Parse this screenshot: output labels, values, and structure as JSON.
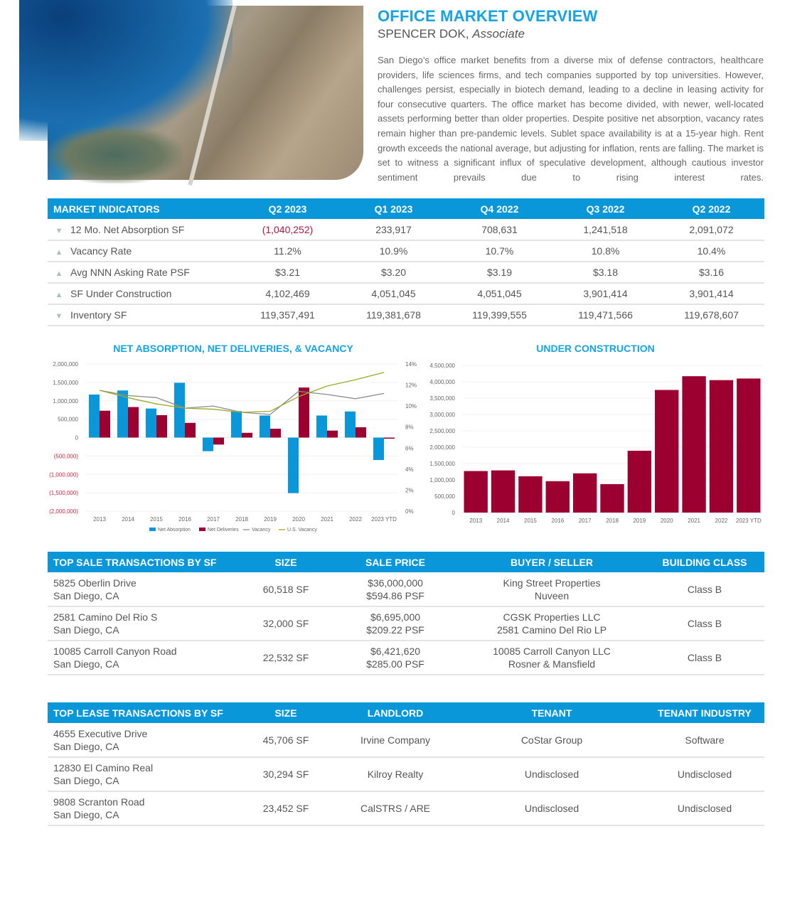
{
  "header": {
    "title": "OFFICE MARKET OVERVIEW",
    "author": "SPENCER DOK,",
    "author_role": "Associate",
    "intro": "San Diego’s office market benefits from a diverse mix of defense contractors, healthcare providers, life sciences firms, and tech companies supported by top universities. However, challenges persist, especially in biotech demand, leading to a decline in leasing activity for four consecutive quarters. The office market has become divided, with newer, well-located assets performing better than older properties. Despite positive net absorption, vacancy rates remain higher than pre-pandemic levels. Sublet space availability is at a 15-year high. Rent growth exceeds the national average, but adjusting for inflation, rents are falling. The market is set to witness a significant influx of speculative development, although cautious investor sentiment prevails due to rising interest rates."
  },
  "market_indicators": {
    "headers": [
      "MARKET INDICATORS",
      "Q2 2023",
      "Q1 2023",
      "Q4 2022",
      "Q3 2022",
      "Q2 2022"
    ],
    "rows": [
      {
        "trend": "down",
        "arrow": "▼",
        "label": "12 Mo. Net Absorption SF",
        "values": [
          "(1,040,252)",
          "233,917",
          "708,631",
          "1,241,518",
          "2,091,072"
        ]
      },
      {
        "trend": "up",
        "arrow": "▲",
        "label": "Vacancy Rate",
        "values": [
          "11.2%",
          "10.9%",
          "10.7%",
          "10.8%",
          "10.4%"
        ]
      },
      {
        "trend": "up",
        "arrow": "▲",
        "label": "Avg NNN Asking Rate PSF",
        "values": [
          "$3.21",
          "$3.20",
          "$3.19",
          "$3.18",
          "$3.16"
        ]
      },
      {
        "trend": "up",
        "arrow": "▲",
        "label": "SF Under Construction",
        "values": [
          "4,102,469",
          "4,051,045",
          "4,051,045",
          "3,901,414",
          "3,901,414"
        ]
      },
      {
        "trend": "down",
        "arrow": "▼",
        "label": "Inventory SF",
        "values": [
          "119,357,491",
          "119,381,678",
          "119,399,555",
          "119,471,566",
          "119,678,607"
        ]
      }
    ]
  },
  "chart_data": [
    {
      "type": "bar",
      "title": "NET ABSORPTION, NET DELIVERIES, & VACANCY",
      "categories": [
        "2013",
        "2014",
        "2015",
        "2016",
        "2017",
        "2018",
        "2019",
        "2020",
        "2021",
        "2022",
        "2023 YTD"
      ],
      "series": [
        {
          "name": "Net Absorption",
          "kind": "bar",
          "axis": "left",
          "color": "#0a97d9",
          "values": [
            1170000,
            1280000,
            790000,
            1490000,
            -370000,
            720000,
            600000,
            -1510000,
            600000,
            710000,
            -610000
          ]
        },
        {
          "name": "Net Deliveries",
          "kind": "bar",
          "axis": "left",
          "color": "#9b0030",
          "values": [
            730000,
            830000,
            610000,
            400000,
            -190000,
            130000,
            240000,
            1360000,
            190000,
            280000,
            -30000
          ]
        },
        {
          "name": "Vacancy",
          "kind": "line",
          "axis": "right",
          "color": "#8c8c8c",
          "values": [
            11.5,
            11.0,
            10.8,
            9.8,
            10.0,
            9.4,
            9.2,
            11.4,
            11.1,
            10.7,
            11.2
          ]
        },
        {
          "name": "U.S. Vacancy",
          "kind": "line",
          "axis": "right",
          "color": "#9aaa2a",
          "values": [
            11.5,
            10.8,
            10.2,
            9.8,
            9.7,
            9.4,
            9.5,
            10.9,
            11.9,
            12.5,
            13.2
          ]
        }
      ],
      "ylim": [
        -2000000,
        2000000
      ],
      "yticks": [
        "2,000,000",
        "1,500,000",
        "1,000,000",
        "500,000",
        "0",
        "(500,000)",
        "(1,000,000)",
        "(1,500,000)",
        "(2,000,000)"
      ],
      "y2lim": [
        0,
        14
      ],
      "y2ticks": [
        "14%",
        "12%",
        "10%",
        "8%",
        "6%",
        "4%",
        "2%",
        "0%"
      ],
      "legend": "bottom"
    },
    {
      "type": "bar",
      "title": "UNDER CONSTRUCTION",
      "categories": [
        "2013",
        "2014",
        "2015",
        "2016",
        "2017",
        "2018",
        "2019",
        "2020",
        "2021",
        "2022",
        "2023 YTD"
      ],
      "values": [
        1270000,
        1290000,
        1110000,
        960000,
        1200000,
        870000,
        1890000,
        3750000,
        4170000,
        4050000,
        4100000
      ],
      "color": "#9b0030",
      "ylim": [
        0,
        4500000
      ],
      "yticks": [
        "4,500,000",
        "4,000,000",
        "3,500,000",
        "3,000,000",
        "2,500,000",
        "2,000,000",
        "1,500,000",
        "1,000,000",
        "500,000",
        "0"
      ]
    }
  ],
  "sales": {
    "headers": [
      "TOP SALE TRANSACTIONS BY SF",
      "SIZE",
      "SALE PRICE",
      "BUYER / SELLER",
      "BUILDING CLASS"
    ],
    "rows": [
      {
        "address": "5825 Oberlin Drive",
        "city": "San Diego, CA",
        "size": "60,518 SF",
        "price": "$36,000,000",
        "psf": "$594.86 PSF",
        "buyer": "King Street Properties",
        "seller": "Nuveen",
        "class": "Class B"
      },
      {
        "address": "2581 Camino Del Rio S",
        "city": "San Diego, CA",
        "size": "32,000 SF",
        "price": "$6,695,000",
        "psf": "$209.22 PSF",
        "buyer": "CGSK Properties LLC",
        "seller": "2581 Camino Del Rio LP",
        "class": "Class B"
      },
      {
        "address": "10085 Carroll Canyon Road",
        "city": "San Diego, CA",
        "size": "22,532 SF",
        "price": "$6,421,620",
        "psf": "$285.00 PSF",
        "buyer": "10085 Carroll Canyon LLC",
        "seller": "Rosner & Mansfield",
        "class": "Class B"
      }
    ]
  },
  "leases": {
    "headers": [
      "TOP LEASE TRANSACTIONS BY SF",
      "SIZE",
      "LANDLORD",
      "TENANT",
      "TENANT INDUSTRY"
    ],
    "rows": [
      {
        "address": "4655 Executive Drive",
        "city": "San Diego, CA",
        "size": "45,706 SF",
        "landlord": "Irvine Company",
        "tenant": "CoStar Group",
        "industry": "Software"
      },
      {
        "address": "12830 El Camino Real",
        "city": "San Diego, CA",
        "size": "30,294 SF",
        "landlord": "Kilroy Realty",
        "tenant": "Undisclosed",
        "industry": "Undisclosed"
      },
      {
        "address": "9808 Scranton Road",
        "city": "San Diego, CA",
        "size": "23,452 SF",
        "landlord": "CalSTRS / ARE",
        "tenant": "Undisclosed",
        "industry": "Undisclosed"
      }
    ]
  }
}
